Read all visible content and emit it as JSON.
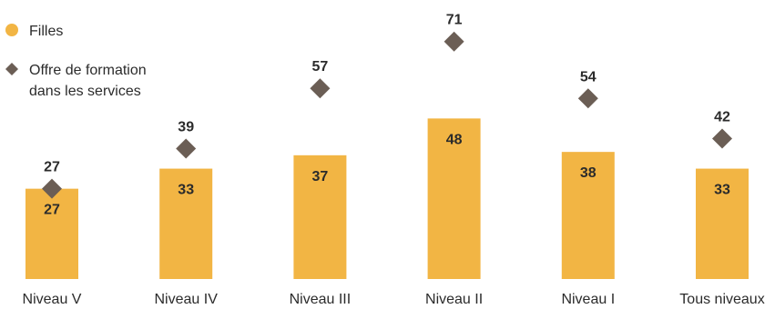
{
  "chart_data": {
    "type": "bar",
    "categories": [
      "Niveau V",
      "Niveau IV",
      "Niveau III",
      "Niveau II",
      "Niveau I",
      "Tous niveaux"
    ],
    "series": [
      {
        "name": "Filles",
        "kind": "bar",
        "color": "#F2B544",
        "values": [
          27,
          33,
          37,
          48,
          38,
          33
        ]
      },
      {
        "name": "Offre de formation dans les services",
        "kind": "marker",
        "marker": "diamond",
        "color": "#6B5E55",
        "values": [
          27,
          39,
          57,
          71,
          54,
          42
        ]
      }
    ],
    "legend": {
      "placement": "top-left",
      "items": [
        {
          "label": "Filles",
          "icon": "circle-icon",
          "color": "#F2B544"
        },
        {
          "label_lines": [
            "Offre de formation",
            "dans les services"
          ],
          "icon": "diamond-icon",
          "color": "#6B5E55"
        }
      ]
    },
    "ylim": [
      0,
      80
    ],
    "grid": false
  }
}
